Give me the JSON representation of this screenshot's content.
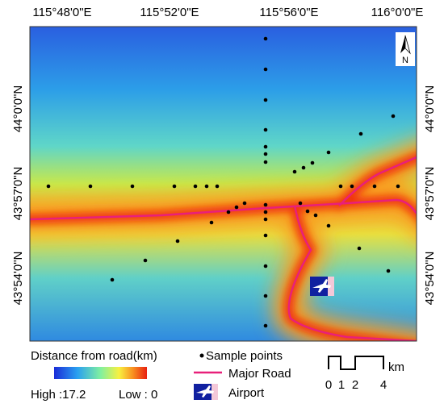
{
  "map": {
    "top_labels": [
      "115°48'0\"E",
      "115°52'0\"E",
      "115°56'0\"E",
      "116°0'0\"E"
    ],
    "left_labels": [
      "44°0'0\"N",
      "43°57'0\"N",
      "43°54'0\"N"
    ],
    "right_labels": [
      "44°0'0\"N",
      "43°57'0\"N",
      "43°54'0\"N"
    ],
    "north": "N"
  },
  "legend": {
    "title": "Distance from road(km)",
    "high": "High :17.2",
    "low": "Low : 0",
    "sample_points": "Sample points",
    "major_road": "Major Road",
    "airport": "Airport"
  },
  "scale_bar": {
    "ticks": [
      "0",
      "1",
      "2",
      "4"
    ],
    "unit": "km"
  }
}
